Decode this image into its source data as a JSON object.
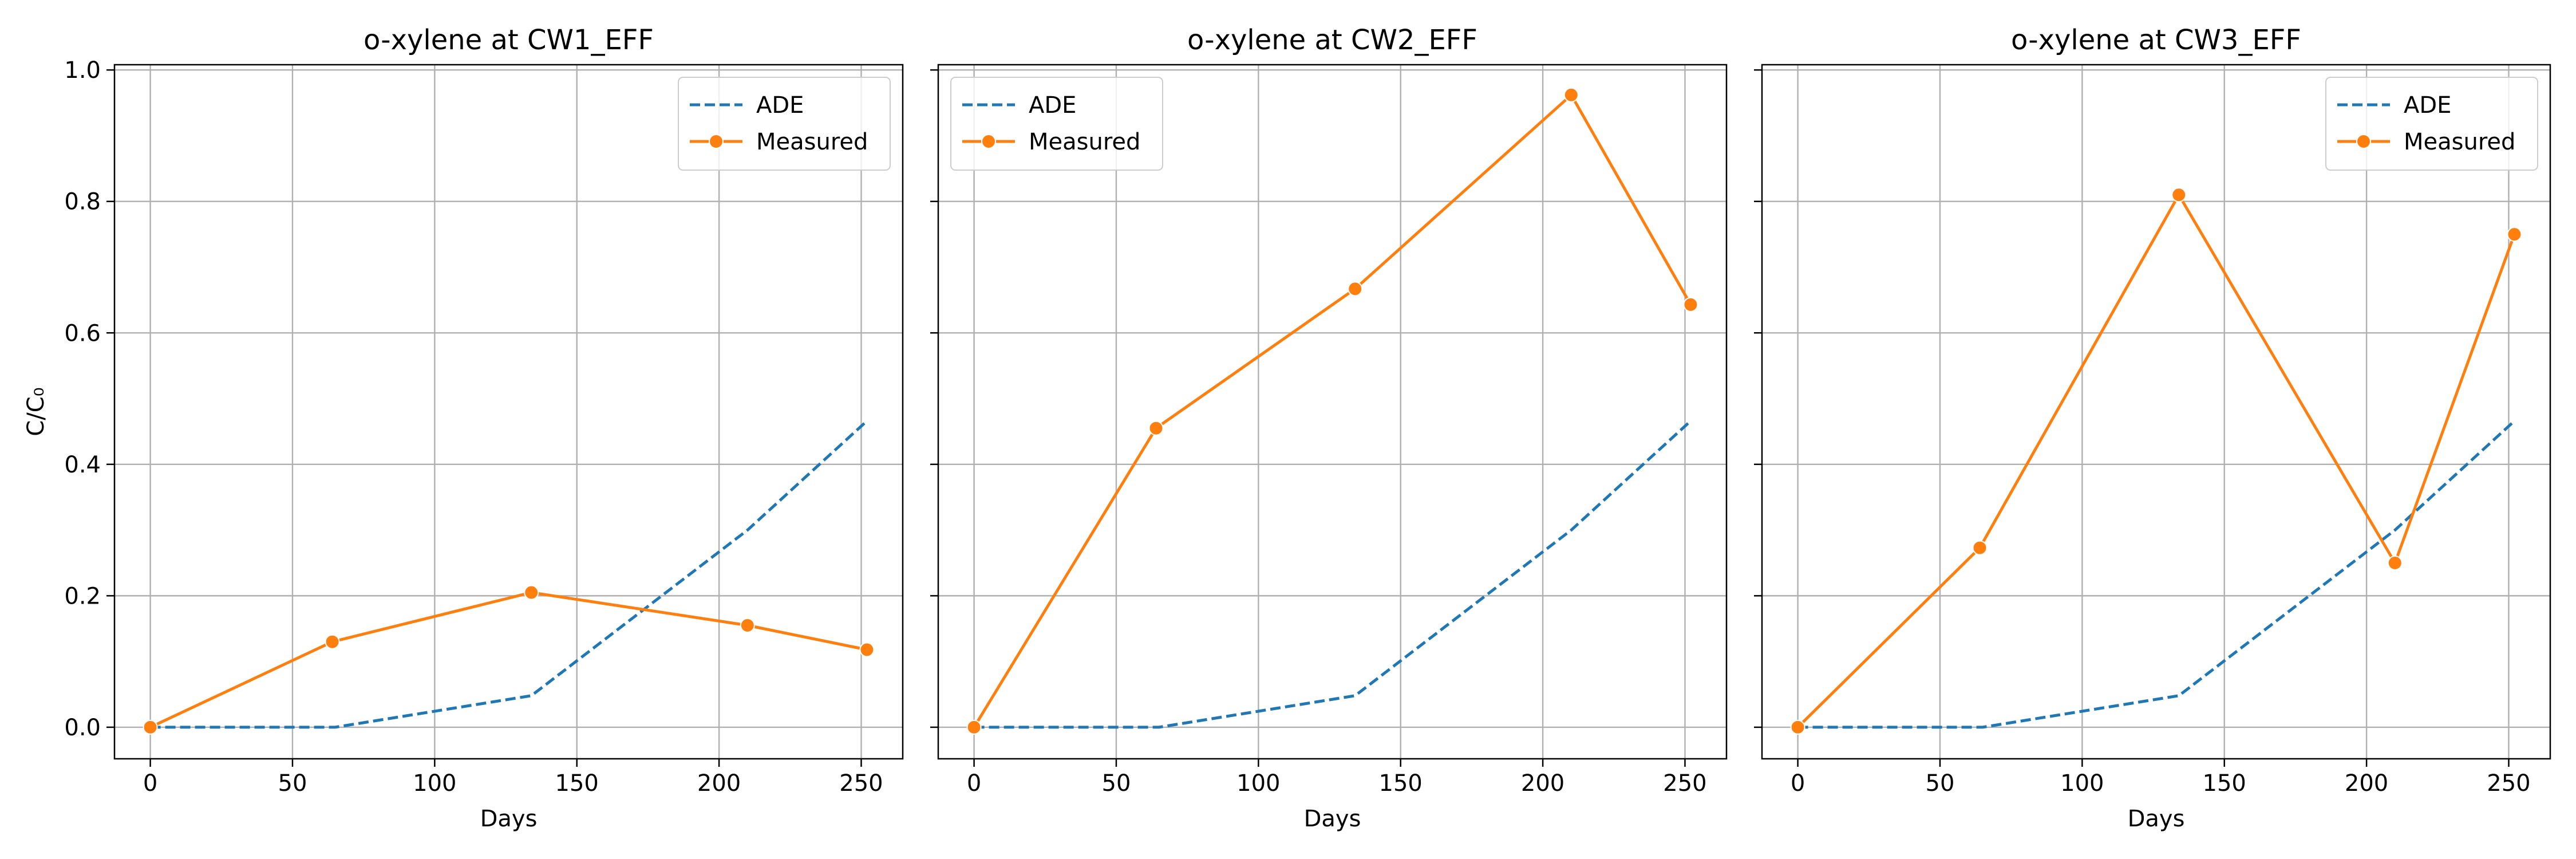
{
  "chart_data": [
    {
      "type": "line",
      "title": "o-xylene at CW1_EFF",
      "xlabel": "Days",
      "ylabel": "C/C₀",
      "xlim": [
        -12.6,
        264.6
      ],
      "ylim": [
        -0.048,
        1.008
      ],
      "xticks": [
        "0",
        "50",
        "100",
        "150",
        "200",
        "250"
      ],
      "yticks": [
        "0.0",
        "0.2",
        "0.4",
        "0.6",
        "0.8",
        "1.0"
      ],
      "grid": true,
      "legend": "upper right",
      "series": [
        {
          "name": "ADE",
          "style": "dashed",
          "color": "#1f77b4",
          "x": [
            0,
            65,
            134,
            210,
            252
          ],
          "y": [
            0.0,
            0.0,
            0.048,
            0.3,
            0.466
          ]
        },
        {
          "name": "Measured",
          "style": "solid-marker",
          "color": "#ff7f0e",
          "x": [
            0,
            64,
            134,
            210,
            252
          ],
          "y": [
            0.0,
            0.13,
            0.205,
            0.155,
            0.118
          ]
        }
      ]
    },
    {
      "type": "line",
      "title": "o-xylene at CW2_EFF",
      "xlabel": "Days",
      "ylabel": "",
      "xlim": [
        -12.6,
        264.6
      ],
      "ylim": [
        -0.048,
        1.008
      ],
      "xticks": [
        "0",
        "50",
        "100",
        "150",
        "200",
        "250"
      ],
      "yticks": [],
      "grid": true,
      "legend": "upper left",
      "series": [
        {
          "name": "ADE",
          "style": "dashed",
          "color": "#1f77b4",
          "x": [
            0,
            65,
            134,
            210,
            252
          ],
          "y": [
            0.0,
            0.0,
            0.048,
            0.3,
            0.466
          ]
        },
        {
          "name": "Measured",
          "style": "solid-marker",
          "color": "#ff7f0e",
          "x": [
            0,
            64,
            134,
            210,
            252
          ],
          "y": [
            0.0,
            0.455,
            0.667,
            0.962,
            0.643
          ]
        }
      ]
    },
    {
      "type": "line",
      "title": "o-xylene at CW3_EFF",
      "xlabel": "Days",
      "ylabel": "",
      "xlim": [
        -12.6,
        264.6
      ],
      "ylim": [
        -0.048,
        1.008
      ],
      "xticks": [
        "0",
        "50",
        "100",
        "150",
        "200",
        "250"
      ],
      "yticks": [],
      "grid": true,
      "legend": "upper right",
      "series": [
        {
          "name": "ADE",
          "style": "dashed",
          "color": "#1f77b4",
          "x": [
            0,
            65,
            134,
            210,
            252
          ],
          "y": [
            0.0,
            0.0,
            0.048,
            0.3,
            0.466
          ]
        },
        {
          "name": "Measured",
          "style": "solid-marker",
          "color": "#ff7f0e",
          "x": [
            0,
            64,
            134,
            210,
            252
          ],
          "y": [
            0.0,
            0.273,
            0.81,
            0.25,
            0.75
          ]
        }
      ]
    }
  ]
}
